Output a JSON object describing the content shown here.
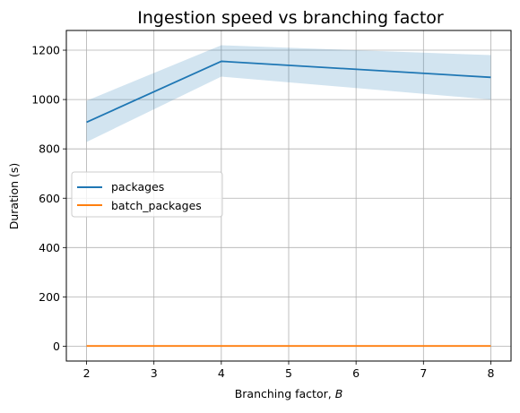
{
  "chart_data": {
    "type": "line",
    "title": "Ingestion speed vs branching factor",
    "xlabel": "Branching factor, ",
    "xlabel_var": "B",
    "ylabel": "Duration (s)",
    "x": [
      2,
      4,
      8
    ],
    "xlim": [
      1.7,
      8.3
    ],
    "ylim": [
      -60,
      1280
    ],
    "xticks": [
      2,
      3,
      4,
      5,
      6,
      7,
      8
    ],
    "yticks": [
      0,
      200,
      400,
      600,
      800,
      1000,
      1200
    ],
    "grid": true,
    "legend_position": "center-left",
    "series": [
      {
        "name": "packages",
        "values": [
          908,
          1155,
          1090
        ],
        "band_upper": [
          995,
          1220,
          1180
        ],
        "band_lower": [
          828,
          1093,
          1000
        ],
        "color": "#1f77b4",
        "band_color": "#1f77b4"
      },
      {
        "name": "batch_packages",
        "values": [
          1,
          1,
          1
        ],
        "color": "#ff7f0e"
      }
    ]
  }
}
